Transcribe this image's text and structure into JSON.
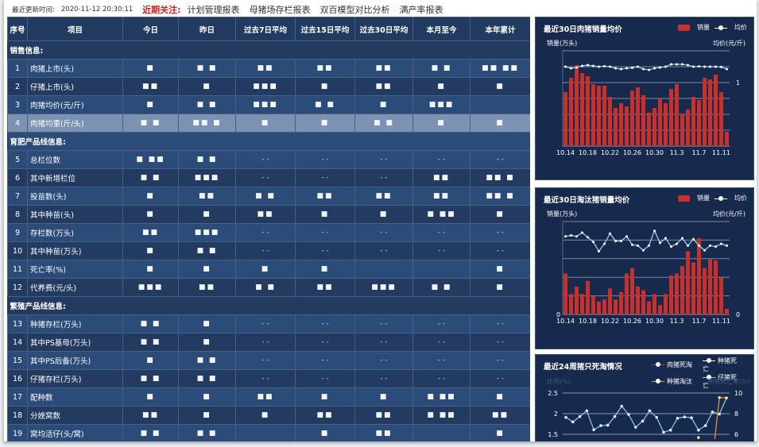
{
  "topbar": {
    "update_label": "最近更新时间:",
    "update_time": "2020-11-12 20:30:11",
    "focus_label": "近期关注:",
    "links": [
      "计划管理报表",
      "母猪场存栏报表",
      "双百模型对比分析",
      "满产率报表"
    ]
  },
  "table": {
    "headers": [
      "序号",
      "项目",
      "今日",
      "昨日",
      "过去7日平均",
      "过去15日平均",
      "过去30日平均",
      "本月至今",
      "本年累计"
    ],
    "sections": [
      {
        "title": "销售信息:",
        "rows": [
          {
            "no": "1",
            "item": "肉猪上市(头)",
            "values": [
              "■",
              "■ ■",
              "■■",
              "■■",
              "■■",
              "■ ■",
              "■■ ■■"
            ]
          },
          {
            "no": "2",
            "item": "仔猪上市(头)",
            "values": [
              "■■",
              "■",
              "■■■",
              "■",
              "■■",
              "■",
              "■"
            ]
          },
          {
            "no": "3",
            "item": "肉猪均价(元/斤)",
            "values": [
              "■",
              "■ ■",
              "■■■",
              "■ ■",
              "■",
              "■■■",
              ""
            ]
          },
          {
            "no": "4",
            "item": "肉猪均重(斤/头)",
            "values": [
              "■ ■",
              "■■ ■",
              "■",
              "■",
              "■ ■",
              "■",
              "■"
            ],
            "selected": true
          }
        ]
      },
      {
        "title": "育肥产品线信息:",
        "rows": [
          {
            "no": "5",
            "item": "总栏位数",
            "values": [
              "■ ■■",
              "■ ■",
              "- -",
              "- -",
              "- -",
              "- -",
              "- -"
            ]
          },
          {
            "no": "6",
            "item": "其中新增栏位",
            "values": [
              "■ ■",
              "■■■",
              "- -",
              "- -",
              "- -",
              "■■",
              "■■ ■"
            ]
          },
          {
            "no": "7",
            "item": "投苗数(头)",
            "values": [
              "■",
              "■■",
              "■ ■",
              "■■",
              "■■",
              "■■",
              "■■ ■"
            ]
          },
          {
            "no": "8",
            "item": "其中种苗(头)",
            "values": [
              "■",
              "■",
              "■■",
              "■",
              "■",
              "■ ■■",
              "■"
            ]
          },
          {
            "no": "9",
            "item": "存栏数(万头)",
            "values": [
              "■■",
              "■■■",
              "- -",
              "- -",
              "- -",
              "- -",
              "- -"
            ]
          },
          {
            "no": "10",
            "item": "其中种苗(万头)",
            "values": [
              "■",
              "■ ■",
              "- -",
              "- -",
              "- -",
              "- -",
              "- -"
            ]
          },
          {
            "no": "11",
            "item": "死亡率(%)",
            "values": [
              "■",
              "■",
              "■",
              "■",
              "",
              "",
              "■"
            ]
          },
          {
            "no": "12",
            "item": "代养费(元/头)",
            "values": [
              "■■■",
              "■■",
              "■ ■",
              "■■",
              "■■■",
              "■ ■",
              "■"
            ]
          }
        ]
      },
      {
        "title": "繁殖产品线信息:",
        "rows": [
          {
            "no": "13",
            "item": "种猪存栏(万头)",
            "values": [
              "■ ■",
              "■",
              "- -",
              "- -",
              "- -",
              "- -",
              "- -"
            ]
          },
          {
            "no": "14",
            "item": "其中PS基母(万头)",
            "values": [
              "■ ■",
              "■",
              "- -",
              "- -",
              "- -",
              "- -",
              "- -"
            ]
          },
          {
            "no": "15",
            "item": "其中PS后备(万头)",
            "values": [
              "■",
              "■ ■",
              "- -",
              "- -",
              "- -",
              "- -",
              "- -"
            ]
          },
          {
            "no": "16",
            "item": "仔猪存栏(万头)",
            "values": [
              "■ ■",
              "■ ■",
              "- -",
              "- -",
              "- -",
              "- -",
              "- -"
            ]
          },
          {
            "no": "17",
            "item": "配种数",
            "values": [
              "■",
              "■",
              "■■",
              "■",
              "■",
              "■ ■■",
              "■"
            ]
          },
          {
            "no": "18",
            "item": "分娩窝数",
            "values": [
              "■■",
              "■",
              "■",
              "■■",
              "■■",
              "■ ■■",
              "■■"
            ]
          },
          {
            "no": "19",
            "item": "窝均活仔(头/窝)",
            "values": [
              "■ ■",
              "■ ■",
              "",
              "■",
              "■■",
              "",
              "■"
            ]
          }
        ]
      }
    ]
  },
  "colors": {
    "bar": "#c8302c",
    "line": "#8fd0f0",
    "panel_bg": "#172a4d",
    "orange": "#f0a020",
    "accent_red": "#d0201c"
  },
  "chart_data": [
    {
      "type": "bar+line",
      "title": "最近30日肉猪销量均价",
      "legend": [
        "销量",
        "均价"
      ],
      "ylabel_left": "销量(万头)",
      "ylabel_right": "均价(元/斤)",
      "right_tick_labels": [
        "1"
      ],
      "categories": [
        "10.14",
        "10.15",
        "10.16",
        "10.17",
        "10.18",
        "10.19",
        "10.20",
        "10.21",
        "10.22",
        "10.23",
        "10.24",
        "10.25",
        "10.26",
        "10.27",
        "10.28",
        "10.29",
        "10.30",
        "10.31",
        "11.1",
        "11.2",
        "11.3",
        "11.4",
        "11.5",
        "11.6",
        "11.7",
        "11.8",
        "11.9",
        "11.10",
        "11.11",
        "11.12"
      ],
      "tick_labels": [
        "10.14",
        "10.18",
        "10.22",
        "10.26",
        "10.30",
        "11.3",
        "11.7",
        "11.11"
      ],
      "ylim": [
        0,
        6
      ],
      "series": [
        {
          "name": "销量",
          "type": "bar",
          "values": [
            3.4,
            4.3,
            5.1,
            4.6,
            4.4,
            3.9,
            3.8,
            3.8,
            3.1,
            2.4,
            2.7,
            2.5,
            3.5,
            3.7,
            3.2,
            2.1,
            2.4,
            3.0,
            2.7,
            3.6,
            3.9,
            2.0,
            2.3,
            3.1,
            2.9,
            4.3,
            4.2,
            4.5,
            3.4,
            0.9
          ]
        },
        {
          "name": "均价",
          "type": "line",
          "values": [
            5.0,
            4.9,
            4.95,
            5.05,
            5.1,
            5.05,
            5.0,
            5.03,
            5.0,
            4.9,
            4.85,
            4.9,
            4.93,
            5.0,
            4.85,
            4.8,
            4.9,
            4.95,
            5.0,
            5.15,
            5.15,
            5.15,
            5.1,
            5.0,
            5.02,
            5.0,
            5.0,
            5.0,
            4.98,
            4.85
          ]
        }
      ]
    },
    {
      "type": "bar+line",
      "title": "最近30日淘汰猪销量均价",
      "legend": [
        "销量",
        "均价"
      ],
      "ylabel_left": "销量(万头)",
      "ylabel_right": "均价(元/斤)",
      "left_tick_labels": [
        "0"
      ],
      "right_tick_labels": [
        "0"
      ],
      "categories": [
        "10.14",
        "10.15",
        "10.16",
        "10.17",
        "10.18",
        "10.19",
        "10.20",
        "10.21",
        "10.22",
        "10.23",
        "10.24",
        "10.25",
        "10.26",
        "10.27",
        "10.28",
        "10.29",
        "10.30",
        "10.31",
        "11.1",
        "11.2",
        "11.3",
        "11.4",
        "11.5",
        "11.6",
        "11.7",
        "11.8",
        "11.9",
        "11.10",
        "11.11",
        "11.12"
      ],
      "tick_labels": [
        "10.14",
        "10.18",
        "10.22",
        "10.26",
        "10.30",
        "11.3",
        "11.7",
        "11.11"
      ],
      "ylim": [
        0,
        5
      ],
      "series": [
        {
          "name": "销量",
          "type": "bar",
          "values": [
            2.2,
            1.1,
            1.5,
            1.1,
            1.8,
            1.0,
            0.7,
            0.8,
            1.4,
            0.8,
            1.2,
            2.2,
            2.5,
            1.5,
            1.3,
            0.7,
            1.1,
            0.5,
            1.1,
            2.1,
            2.2,
            2.6,
            3.4,
            2.8,
            4.1,
            2.5,
            3.0,
            2.9,
            2.0,
            0.3
          ]
        },
        {
          "name": "均价",
          "type": "line",
          "values": [
            4.2,
            4.25,
            4.2,
            4.4,
            4.15,
            3.9,
            3.4,
            3.8,
            4.35,
            3.95,
            3.95,
            4.2,
            3.75,
            3.7,
            3.45,
            3.7,
            4.5,
            3.85,
            4.1,
            3.65,
            3.8,
            4.1,
            3.7,
            4.05,
            3.7,
            3.45,
            3.7,
            3.65,
            3.8,
            3.7
          ]
        }
      ]
    },
    {
      "type": "line",
      "title": "最近24周猪只死淘情况",
      "legend": [
        "肉猪死淘",
        "种猪死亡",
        "种猪淘汰",
        "仔猪死亡"
      ],
      "ylabel_left": "比例(%)",
      "ylabel_right": "种猪死亡率(%)",
      "left_ticks": [
        2.5,
        2,
        1.5
      ],
      "right_ticks": [
        10,
        8,
        6
      ],
      "ylim": [
        1.5,
        2.5
      ],
      "ylim_right": [
        6,
        10
      ],
      "series": [
        {
          "name": "仔猪死亡",
          "axis": "left",
          "values": [
            1.91,
            1.8,
            1.93,
            2.07,
            1.61,
            1.71,
            1.72,
            1.93,
            2.18,
            1.98,
            1.67,
            1.82,
            2.07,
            1.91,
            1.55,
            1.6,
            1.89,
            1.92,
            1.9,
            1.6,
            1.71,
            2.04,
            1.99,
            2.38
          ]
        },
        {
          "name": "种猪淘汰",
          "axis": "left",
          "values": [
            null,
            null,
            null,
            null,
            null,
            null,
            null,
            null,
            null,
            null,
            null,
            null,
            null,
            null,
            null,
            null,
            null,
            null,
            null,
            1.42,
            0.8,
            0.9,
            2.39,
            2.38
          ]
        }
      ]
    }
  ]
}
